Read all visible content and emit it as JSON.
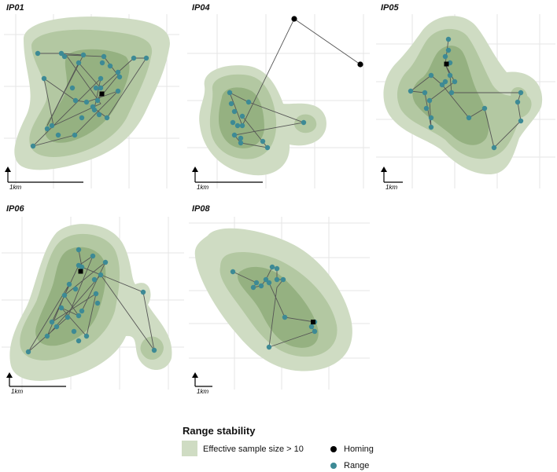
{
  "panels": [
    {
      "id": "IP01"
    },
    {
      "id": "IP04"
    },
    {
      "id": "IP05"
    },
    {
      "id": "IP06"
    },
    {
      "id": "IP08"
    }
  ],
  "scale_bar_label": "1km",
  "legend": {
    "title": "Range stability",
    "fill_label": "Effective sample size > 10",
    "homing_label": "Homing",
    "range_label": "Range"
  },
  "colors": {
    "kde_outer": "#cfdcc3",
    "kde_mid": "#b3c8a2",
    "kde_inner": "#95b181",
    "range_point": "#3d8a95",
    "homing_point": "#000000",
    "track": "#555555"
  }
}
